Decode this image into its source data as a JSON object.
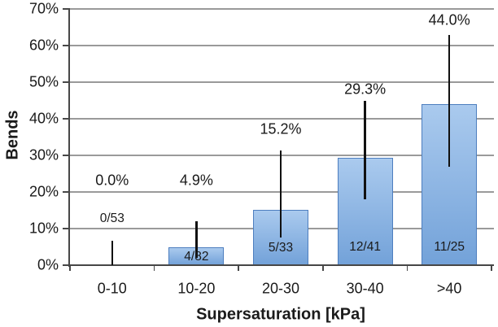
{
  "chart_data": {
    "type": "bar",
    "title": "",
    "xlabel": "Supersaturation [kPa]",
    "ylabel": "Bends",
    "categories": [
      "0-10",
      "10-20",
      "20-30",
      "30-40",
      ">40"
    ],
    "values": [
      0.0,
      4.9,
      15.2,
      29.3,
      44.0
    ],
    "value_labels": [
      "0.0%",
      "4.9%",
      "15.2%",
      "29.3%",
      "44.0%"
    ],
    "value_label_heights": [
      23.2,
      23.2,
      37.1,
      48.0,
      66.9
    ],
    "fractions": [
      "0/53",
      "4/82",
      "5/33",
      "12/41",
      "11/25"
    ],
    "fraction_label_heights": [
      12.7,
      2.2,
      4.7,
      4.9,
      4.9
    ],
    "error_bars": [
      [
        0.0,
        6.7
      ],
      [
        2.0,
        12.0
      ],
      [
        7.5,
        31.3
      ],
      [
        18.0,
        45.0
      ],
      [
        27.0,
        63.0
      ]
    ],
    "ylim": [
      0,
      70
    ],
    "ytick_step": 10,
    "ytick_labels": [
      "0%",
      "10%",
      "20%",
      "30%",
      "40%",
      "50%",
      "60%",
      "70%"
    ],
    "grid": true,
    "legend": "none"
  },
  "colors": {
    "bar_gradient_top": "#aacaee",
    "bar_gradient_bottom": "#73a2d9",
    "bar_border": "#4d7ebf",
    "gridline": "#9a9a9a",
    "axis": "#474747",
    "error_bar": "#111111",
    "text": "#1a1a1a"
  }
}
